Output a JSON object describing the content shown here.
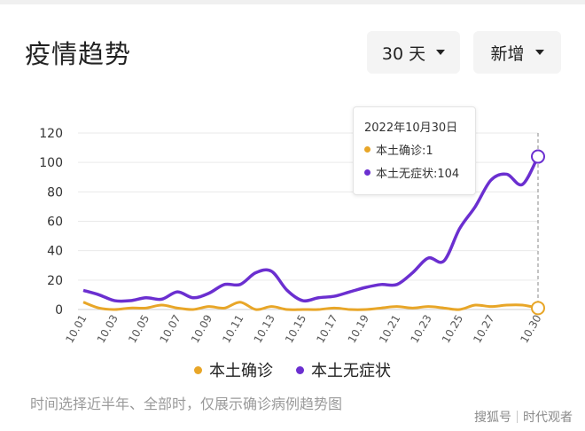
{
  "header": {
    "title": "疫情趋势",
    "range_dropdown": "30 天",
    "metric_dropdown": "新增"
  },
  "tooltip": {
    "date": "2022年10月30日",
    "rows": [
      {
        "label": "本土确诊:1"
      },
      {
        "label": "本土无症状:104"
      }
    ]
  },
  "legend": [
    "本土确诊",
    "本土无症状"
  ],
  "note": "时间选择近半年、全部时，仅展示确诊病例趋势图",
  "watermark": {
    "left": "搜狐号",
    "right": "时代观者"
  },
  "colors": {
    "confirmed": "#e8a628",
    "asymptomatic": "#6b2fd0"
  },
  "chart_data": {
    "type": "line",
    "x": [
      "10.01",
      "10.02",
      "10.03",
      "10.04",
      "10.05",
      "10.06",
      "10.07",
      "10.08",
      "10.09",
      "10.10",
      "10.11",
      "10.12",
      "10.13",
      "10.14",
      "10.15",
      "10.16",
      "10.17",
      "10.18",
      "10.19",
      "10.20",
      "10.21",
      "10.22",
      "10.23",
      "10.24",
      "10.25",
      "10.26",
      "10.27",
      "10.28",
      "10.29",
      "10.30"
    ],
    "tick_labels": [
      "10.01",
      "10.03",
      "10.05",
      "10.07",
      "10.09",
      "10.11",
      "10.13",
      "10.15",
      "10.17",
      "10.19",
      "10.21",
      "10.23",
      "10.25",
      "10.27",
      "10.30"
    ],
    "yticks": [
      0,
      20,
      40,
      60,
      80,
      100,
      120
    ],
    "ylim": [
      0,
      120
    ],
    "grid": true,
    "series": [
      {
        "name": "本土确诊",
        "values": [
          5,
          1,
          0,
          1,
          1,
          3,
          1,
          0,
          2,
          1,
          5,
          0,
          2,
          0,
          0,
          0,
          1,
          0,
          0,
          1,
          2,
          1,
          2,
          1,
          0,
          3,
          2,
          3,
          3,
          1
        ]
      },
      {
        "name": "本土无症状",
        "values": [
          13,
          10,
          6,
          6,
          8,
          7,
          12,
          8,
          11,
          17,
          17,
          25,
          26,
          13,
          6,
          8,
          9,
          12,
          15,
          17,
          17,
          25,
          35,
          33,
          55,
          70,
          88,
          92,
          85,
          104
        ]
      }
    ]
  }
}
